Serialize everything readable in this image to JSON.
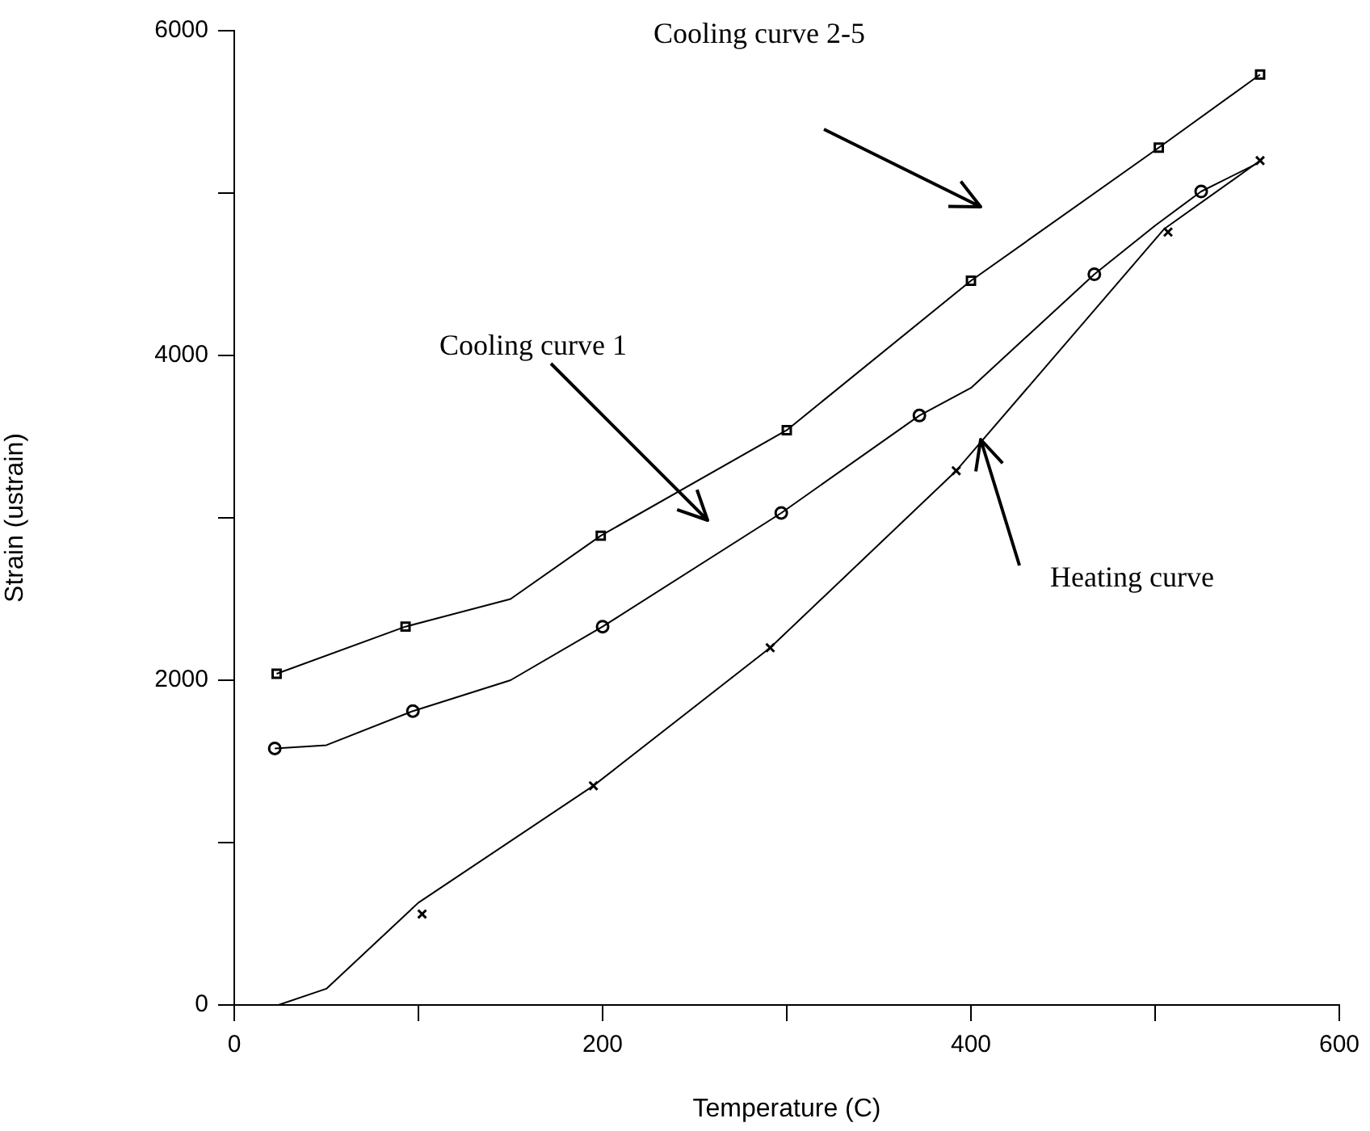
{
  "chart_data": {
    "type": "line",
    "xlabel": "Temperature (C)",
    "ylabel": "Strain (ustrain)",
    "xlim": [
      0,
      600
    ],
    "ylim": [
      0,
      6000
    ],
    "xticks": [
      0,
      {
        "value": 100,
        "label": null
      },
      200,
      {
        "value": 300,
        "label": null
      },
      400,
      {
        "value": 500,
        "label": null
      },
      600
    ],
    "yticks": [
      0,
      {
        "value": 1000,
        "label": null
      },
      2000,
      {
        "value": 3000,
        "label": null
      },
      4000,
      {
        "value": 5000,
        "label": null
      },
      6000
    ],
    "grid": false,
    "legend": false,
    "series": [
      {
        "marker": "none",
        "color": "#000000",
        "x": [
          23,
          93,
          150,
          199,
          300,
          400,
          502,
          557
        ],
        "values": [
          2040,
          2330,
          2500,
          2890,
          3540,
          4460,
          5280,
          5730
        ]
      },
      {
        "marker": "none",
        "color": "#000000",
        "x": [
          22,
          50,
          97,
          150,
          200,
          297,
          372,
          400,
          467,
          500,
          525,
          555
        ],
        "values": [
          1580,
          1600,
          1810,
          2000,
          2330,
          3030,
          3630,
          3800,
          4500,
          4800,
          5010,
          5180
        ]
      },
      {
        "marker": "none",
        "color": "#000000",
        "x": [
          24,
          50,
          100,
          195,
          291,
          392,
          505,
          557
        ],
        "values": [
          0,
          100,
          630,
          1350,
          2200,
          3290,
          4780,
          5200
        ]
      },
      {
        "type": "scatter",
        "marker": "square",
        "color": "#000000",
        "x": [
          23,
          93,
          199,
          300,
          400,
          502,
          557
        ],
        "values": [
          2040,
          2330,
          2890,
          3540,
          4460,
          5280,
          5730
        ]
      },
      {
        "type": "scatter",
        "marker": "circle",
        "color": "#000000",
        "x": [
          22,
          97,
          200,
          297,
          372,
          467,
          525
        ],
        "values": [
          1580,
          1810,
          2330,
          3030,
          3630,
          4500,
          5010
        ]
      },
      {
        "type": "scatter",
        "marker": "cross",
        "color": "#000000",
        "x": [
          102,
          195,
          291,
          392,
          507,
          557
        ],
        "values": [
          560,
          1350,
          2200,
          3290,
          4760,
          5200
        ]
      }
    ],
    "annotations": [
      "Cooling curve 2-5",
      "Cooling curve 1",
      {
        "text": "Heating curve",
        "x": 405,
        "y": 3480
      }
    ]
  }
}
